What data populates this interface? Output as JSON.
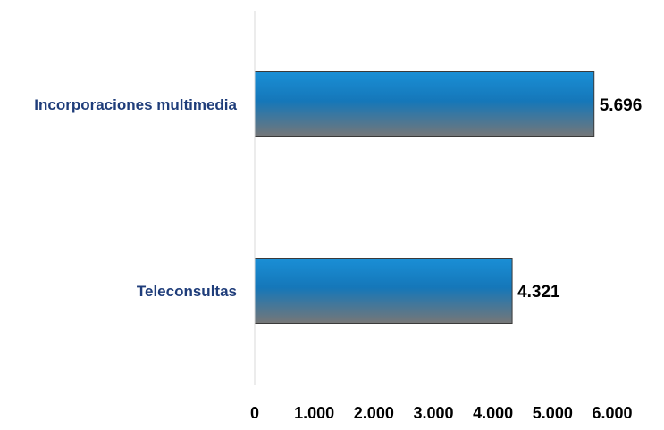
{
  "chart_data": {
    "type": "bar",
    "orientation": "horizontal",
    "categories": [
      "Incorporaciones multimedia",
      "Teleconsultas"
    ],
    "values": [
      5696,
      4321
    ],
    "value_labels": [
      "5.696",
      "4.321"
    ],
    "xlim": [
      0,
      6000
    ],
    "x_ticks": [
      0,
      1000,
      2000,
      3000,
      4000,
      5000,
      6000
    ],
    "x_tick_labels": [
      "0",
      "1.000",
      "2.000",
      "3.000",
      "4.000",
      "5.000",
      "6.000"
    ],
    "title": "",
    "xlabel": "",
    "ylabel": "",
    "grid": false,
    "legend": "none",
    "colors": {
      "bar_top": "#1a8fd6",
      "bar_mid": "#1577b9",
      "bar_bottom": "#777777",
      "bar_border": "#3a3a3a",
      "category_label": "#1f3d7a",
      "axis_line": "#d9d9d9"
    }
  }
}
